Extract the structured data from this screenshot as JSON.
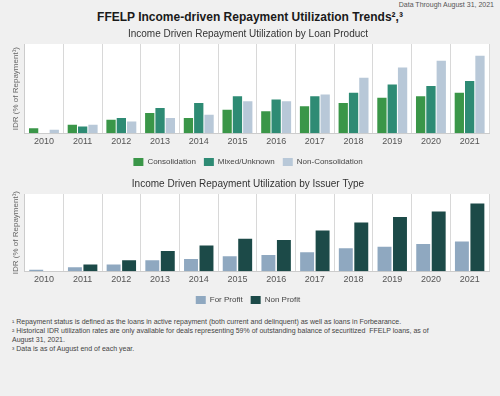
{
  "title": "FFELP Income-driven Repayment Utilization Trends²,³",
  "subtitle": "Data Through August 31, 2021",
  "annotations": [
    "¹ Repayment status is defined as the loans in active repayment (both current and delinquent) as well as loans in Forbearance.",
    "² Historical IDR utilization rates are only available for deals representing 59% of outstanding balance of securitized  FFELP loans, as of",
    "August 31, 2021.",
    "³ Data is as of August end of each year."
  ],
  "chart_data": [
    {
      "type": "bar",
      "title": "Income Driven Repayment Utilization by Loan Product",
      "ylabel": "IDR (% of Repayment¹)",
      "categories": [
        "2010",
        "2011",
        "2012",
        "2013",
        "2014",
        "2015",
        "2016",
        "2017",
        "2018",
        "2019",
        "2020",
        "2021"
      ],
      "series": [
        {
          "name": "Consolidation",
          "color": "#3a9648",
          "values": [
            3,
            5,
            8,
            12,
            9,
            14,
            13,
            16,
            18,
            21,
            22,
            24
          ]
        },
        {
          "name": "Mixed/Unknown",
          "color": "#2e8b74",
          "values": [
            0,
            4,
            9,
            15,
            18,
            22,
            20,
            22,
            24,
            29,
            28,
            31
          ]
        },
        {
          "name": "Non-Consolidation",
          "color": "#b8c8d8",
          "values": [
            2,
            5,
            7,
            9,
            11,
            19,
            19,
            23,
            33,
            39,
            43,
            46
          ]
        }
      ],
      "ylim": [
        0,
        53
      ],
      "yticks": [],
      "grid": true,
      "legend": "bottom",
      "tick_labels": "x"
    },
    {
      "type": "bar",
      "title": "Income Driven Repayment Utilization by Issuer Type",
      "ylabel": "IDR (% of Repayment¹)",
      "categories": [
        "2010",
        "2011",
        "2012",
        "2013",
        "2014",
        "2015",
        "2016",
        "2017",
        "2018",
        "2019",
        "2020",
        "2021"
      ],
      "series": [
        {
          "name": "For Profit",
          "color": "#8fa8c0",
          "values": [
            1,
            3,
            5,
            8,
            9,
            11,
            12,
            14,
            17,
            18,
            20,
            22
          ]
        },
        {
          "name": "Non Profit",
          "color": "#1c4a48",
          "values": [
            0,
            5,
            8,
            15,
            19,
            24,
            23,
            30,
            36,
            40,
            44,
            50
          ]
        }
      ],
      "ylim": [
        0,
        57
      ],
      "yticks": [],
      "grid": true,
      "legend": "bottom",
      "tick_labels": "x"
    }
  ]
}
